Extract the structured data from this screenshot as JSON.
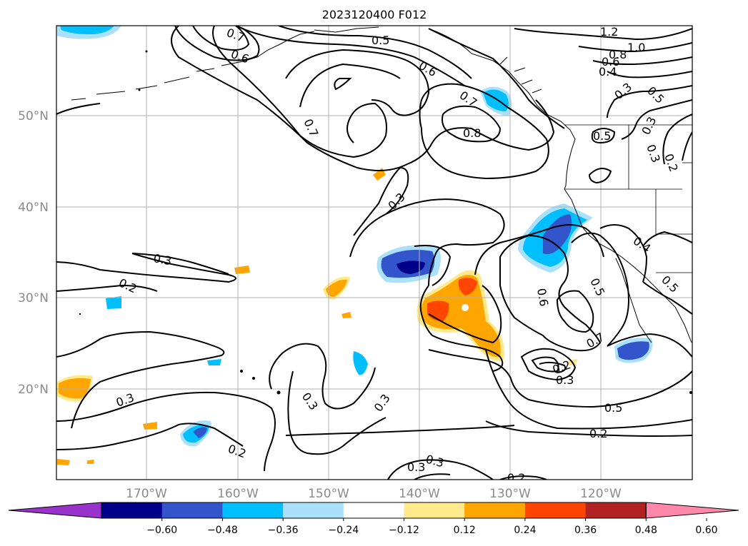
{
  "title": "2023120400 F012",
  "latitude_labels": [
    "50°N",
    "40°N",
    "30°N",
    "20°N"
  ],
  "longitude_labels": [
    "170°W",
    "160°W",
    "150°W",
    "140°W",
    "130°W",
    "120°W"
  ],
  "colorbar": {
    "colors": [
      "#9933cc",
      "#00008b",
      "#3355cc",
      "#00bfff",
      "#aae0fa",
      "#ffffff",
      "#ffe98a",
      "#ffa500",
      "#ff4500",
      "#b22222",
      "#ff88aa"
    ],
    "ticks": [
      "−0.60",
      "−0.48",
      "−0.36",
      "−0.24",
      "−0.12",
      "0.12",
      "0.24",
      "0.36",
      "0.48",
      "0.60"
    ]
  },
  "contour_labels": [
    "1.2",
    "1.0",
    "0.8",
    "0.6",
    "0.4",
    "0.5",
    "0.7",
    "0.6",
    "0.5",
    "0.6",
    "0.7",
    "0.8",
    "0.7",
    "0.3",
    "0.3",
    "0.2",
    "0.3",
    "0.3",
    "0.3",
    "0.2",
    "0.3",
    "0.3",
    "0.2",
    "0.5",
    "0.2",
    "0.6",
    "0.5",
    "0.7",
    "0.5",
    "0.3",
    "0.2",
    "0.3",
    "0.2",
    "0.3",
    "0.4",
    "0.5",
    "0.3"
  ]
}
